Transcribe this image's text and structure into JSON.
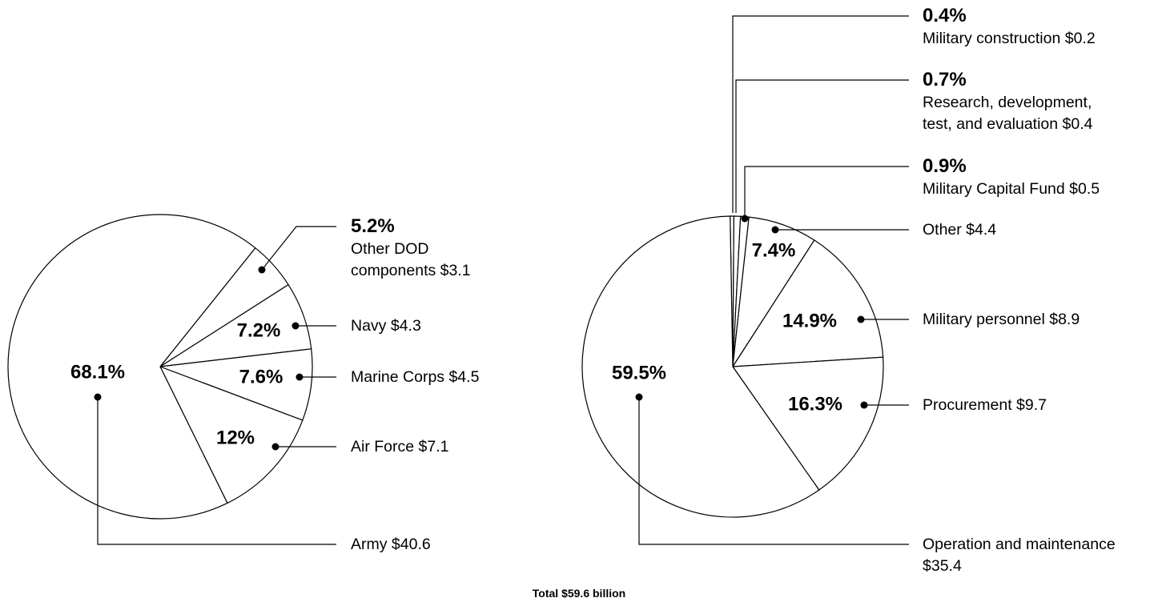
{
  "chart_data": [
    {
      "type": "pie",
      "categories": [
        "Other DOD components $3.1",
        "Navy $4.3",
        "Marine Corps $4.5",
        "Air Force $7.1",
        "Army $40.6"
      ],
      "values": [
        5.2,
        7.2,
        7.6,
        12,
        68.1
      ],
      "value_labels": [
        "5.2%",
        "7.2%",
        "7.6%",
        "12%",
        "68.1%"
      ]
    },
    {
      "type": "pie",
      "categories": [
        "Military construction $0.2",
        "Research, development, test, and evaluation $0.4",
        "Military Capital Fund $0.5",
        "Other $4.4",
        "Military personnel $8.9",
        "Procurement $9.7",
        "Operation and maintenance $35.4"
      ],
      "values": [
        0.4,
        0.7,
        0.9,
        7.4,
        14.9,
        16.3,
        59.5
      ],
      "value_labels": [
        "0.4%",
        "0.7%",
        "0.9%",
        "7.4%",
        "14.9%",
        "16.3%",
        "59.5%"
      ]
    }
  ],
  "caption": "Total $59.6 billion"
}
